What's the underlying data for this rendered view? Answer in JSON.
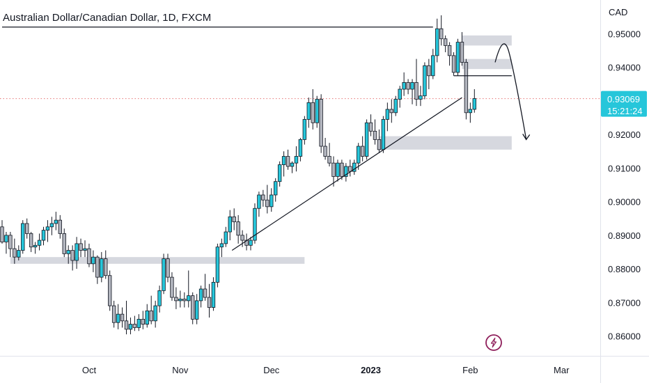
{
  "chart_title": "Australian Dollar/Canadian Dollar, 1D, FXCM",
  "currency": "CAD",
  "price_badge": {
    "price": "0.93069",
    "countdown": "15:21:24"
  },
  "colors": {
    "up": "#26c6da",
    "down": "#b2b5be",
    "zone": "#d1d4dc",
    "badge": "#26c6da",
    "price_line": "#e57373"
  },
  "icon": {
    "name": "lightning-icon",
    "color": "#8e1e5a"
  },
  "chart_data": {
    "type": "candlestick",
    "title": "Australian Dollar/Canadian Dollar, 1D, FXCM",
    "y_axis_label": "CAD",
    "ylim": [
      0.855,
      0.9565
    ],
    "y_ticks": [
      {
        "value": 0.95,
        "label": "0.95000"
      },
      {
        "value": 0.94,
        "label": "0.94000"
      },
      {
        "value": 0.92,
        "label": "0.92000"
      },
      {
        "value": 0.91,
        "label": "0.91000"
      },
      {
        "value": 0.9,
        "label": "0.90000"
      },
      {
        "value": 0.89,
        "label": "0.89000"
      },
      {
        "value": 0.88,
        "label": "0.88000"
      },
      {
        "value": 0.87,
        "label": "0.87000"
      },
      {
        "value": 0.86,
        "label": "0.86000"
      }
    ],
    "x_ticks": [
      {
        "label": "Oct",
        "bar": 21,
        "bold": false
      },
      {
        "label": "Nov",
        "bar": 43,
        "bold": false
      },
      {
        "label": "Dec",
        "bar": 65,
        "bold": false
      },
      {
        "label": "2023",
        "bar": 89,
        "bold": true
      },
      {
        "label": "Feb",
        "bar": 113,
        "bold": false
      },
      {
        "label": "Mar",
        "bar": 135,
        "bold": false
      }
    ],
    "last_price": 0.93069,
    "candles": [
      [
        0.8925,
        0.8945,
        0.8875,
        0.888
      ],
      [
        0.888,
        0.891,
        0.8845,
        0.89
      ],
      [
        0.89,
        0.891,
        0.8835,
        0.886
      ],
      [
        0.886,
        0.889,
        0.8815,
        0.8835
      ],
      [
        0.8835,
        0.887,
        0.8825,
        0.8855
      ],
      [
        0.8855,
        0.8945,
        0.8845,
        0.8935
      ],
      [
        0.8935,
        0.895,
        0.889,
        0.8905
      ],
      [
        0.8905,
        0.891,
        0.885,
        0.8865
      ],
      [
        0.8865,
        0.888,
        0.8845,
        0.887
      ],
      [
        0.887,
        0.8905,
        0.8855,
        0.8885
      ],
      [
        0.8885,
        0.8925,
        0.887,
        0.8915
      ],
      [
        0.8915,
        0.8945,
        0.888,
        0.8925
      ],
      [
        0.8925,
        0.8955,
        0.89,
        0.8935
      ],
      [
        0.8935,
        0.897,
        0.8915,
        0.8945
      ],
      [
        0.8945,
        0.896,
        0.889,
        0.8905
      ],
      [
        0.8905,
        0.892,
        0.8835,
        0.8845
      ],
      [
        0.8845,
        0.887,
        0.8815,
        0.8855
      ],
      [
        0.8855,
        0.887,
        0.8795,
        0.8825
      ],
      [
        0.8825,
        0.8895,
        0.88,
        0.8875
      ],
      [
        0.8875,
        0.889,
        0.8835,
        0.8855
      ],
      [
        0.8855,
        0.8885,
        0.8835,
        0.886
      ],
      [
        0.886,
        0.8875,
        0.8805,
        0.8815
      ],
      [
        0.8815,
        0.8855,
        0.879,
        0.8835
      ],
      [
        0.8835,
        0.884,
        0.8755,
        0.8775
      ],
      [
        0.8775,
        0.885,
        0.876,
        0.883
      ],
      [
        0.883,
        0.8855,
        0.877,
        0.878
      ],
      [
        0.878,
        0.8795,
        0.8675,
        0.869
      ],
      [
        0.869,
        0.8705,
        0.8625,
        0.864
      ],
      [
        0.864,
        0.8695,
        0.862,
        0.8665
      ],
      [
        0.8665,
        0.8685,
        0.8625,
        0.8645
      ],
      [
        0.8645,
        0.8705,
        0.8605,
        0.862
      ],
      [
        0.862,
        0.8655,
        0.8605,
        0.8635
      ],
      [
        0.8635,
        0.866,
        0.8615,
        0.8625
      ],
      [
        0.8625,
        0.8665,
        0.8615,
        0.865
      ],
      [
        0.865,
        0.8675,
        0.862,
        0.8635
      ],
      [
        0.8635,
        0.8695,
        0.8625,
        0.8675
      ],
      [
        0.8675,
        0.872,
        0.8635,
        0.8645
      ],
      [
        0.8645,
        0.8705,
        0.8625,
        0.869
      ],
      [
        0.869,
        0.875,
        0.867,
        0.8735
      ],
      [
        0.8735,
        0.8845,
        0.8725,
        0.883
      ],
      [
        0.883,
        0.8845,
        0.876,
        0.8775
      ],
      [
        0.8775,
        0.879,
        0.8705,
        0.8715
      ],
      [
        0.8715,
        0.8745,
        0.868,
        0.8705
      ],
      [
        0.8705,
        0.8735,
        0.8685,
        0.871
      ],
      [
        0.871,
        0.873,
        0.8685,
        0.8705
      ],
      [
        0.8705,
        0.8795,
        0.8685,
        0.872
      ],
      [
        0.872,
        0.873,
        0.8635,
        0.865
      ],
      [
        0.865,
        0.8725,
        0.8635,
        0.8705
      ],
      [
        0.8705,
        0.875,
        0.8685,
        0.874
      ],
      [
        0.874,
        0.8785,
        0.8705,
        0.8715
      ],
      [
        0.8715,
        0.8755,
        0.8655,
        0.8685
      ],
      [
        0.8685,
        0.8775,
        0.8675,
        0.876
      ],
      [
        0.876,
        0.8875,
        0.8745,
        0.8865
      ],
      [
        0.8865,
        0.889,
        0.8835,
        0.8875
      ],
      [
        0.8875,
        0.8925,
        0.8865,
        0.891
      ],
      [
        0.891,
        0.8975,
        0.8885,
        0.8955
      ],
      [
        0.8955,
        0.898,
        0.8915,
        0.894
      ],
      [
        0.894,
        0.896,
        0.8875,
        0.89
      ],
      [
        0.89,
        0.8915,
        0.8865,
        0.8885
      ],
      [
        0.8885,
        0.8905,
        0.8855,
        0.887
      ],
      [
        0.887,
        0.8895,
        0.8855,
        0.8885
      ],
      [
        0.8885,
        0.8995,
        0.8875,
        0.898
      ],
      [
        0.898,
        0.903,
        0.8955,
        0.902
      ],
      [
        0.902,
        0.9035,
        0.8985,
        0.9005
      ],
      [
        0.9005,
        0.905,
        0.8965,
        0.8985
      ],
      [
        0.8985,
        0.904,
        0.897,
        0.902
      ],
      [
        0.902,
        0.907,
        0.9,
        0.906
      ],
      [
        0.906,
        0.912,
        0.9045,
        0.911
      ],
      [
        0.911,
        0.915,
        0.9075,
        0.9135
      ],
      [
        0.9135,
        0.9155,
        0.9095,
        0.9105
      ],
      [
        0.9105,
        0.912,
        0.9085,
        0.9115
      ],
      [
        0.9115,
        0.9165,
        0.909,
        0.9135
      ],
      [
        0.9135,
        0.919,
        0.912,
        0.9185
      ],
      [
        0.9185,
        0.9255,
        0.917,
        0.9245
      ],
      [
        0.9245,
        0.931,
        0.922,
        0.9295
      ],
      [
        0.9295,
        0.9335,
        0.9215,
        0.9235
      ],
      [
        0.9235,
        0.9315,
        0.922,
        0.9305
      ],
      [
        0.9305,
        0.932,
        0.9145,
        0.9165
      ],
      [
        0.9165,
        0.919,
        0.9125,
        0.9135
      ],
      [
        0.9135,
        0.9175,
        0.9105,
        0.9115
      ],
      [
        0.9115,
        0.9135,
        0.9045,
        0.9075
      ],
      [
        0.9075,
        0.9125,
        0.906,
        0.9115
      ],
      [
        0.9115,
        0.9125,
        0.9065,
        0.9075
      ],
      [
        0.9075,
        0.9115,
        0.906,
        0.9105
      ],
      [
        0.9105,
        0.9125,
        0.9075,
        0.909
      ],
      [
        0.909,
        0.9125,
        0.908,
        0.9115
      ],
      [
        0.9115,
        0.9175,
        0.9095,
        0.9165
      ],
      [
        0.9165,
        0.9195,
        0.912,
        0.9135
      ],
      [
        0.9135,
        0.9245,
        0.9125,
        0.9235
      ],
      [
        0.9235,
        0.926,
        0.9195,
        0.921
      ],
      [
        0.921,
        0.9245,
        0.917,
        0.9185
      ],
      [
        0.9185,
        0.9215,
        0.9145,
        0.9155
      ],
      [
        0.9155,
        0.9255,
        0.9145,
        0.9245
      ],
      [
        0.9245,
        0.9295,
        0.921,
        0.9275
      ],
      [
        0.9275,
        0.9305,
        0.9235,
        0.9265
      ],
      [
        0.9265,
        0.9315,
        0.9255,
        0.9305
      ],
      [
        0.9305,
        0.9345,
        0.928,
        0.9335
      ],
      [
        0.9335,
        0.9385,
        0.9315,
        0.9355
      ],
      [
        0.9355,
        0.9365,
        0.932,
        0.9335
      ],
      [
        0.9335,
        0.9365,
        0.929,
        0.9355
      ],
      [
        0.9355,
        0.9425,
        0.9285,
        0.9305
      ],
      [
        0.9305,
        0.9345,
        0.9285,
        0.9315
      ],
      [
        0.9315,
        0.9415,
        0.9305,
        0.9405
      ],
      [
        0.9405,
        0.9425,
        0.9335,
        0.9375
      ],
      [
        0.9375,
        0.9455,
        0.9365,
        0.9435
      ],
      [
        0.9435,
        0.9545,
        0.9415,
        0.9515
      ],
      [
        0.9515,
        0.9555,
        0.9465,
        0.9485
      ],
      [
        0.9485,
        0.9495,
        0.9445,
        0.9465
      ],
      [
        0.9465,
        0.9475,
        0.9405,
        0.9435
      ],
      [
        0.9435,
        0.9445,
        0.9375,
        0.9385
      ],
      [
        0.9385,
        0.9485,
        0.9375,
        0.9475
      ],
      [
        0.9475,
        0.9505,
        0.9405,
        0.9415
      ],
      [
        0.9415,
        0.9425,
        0.9245,
        0.9265
      ],
      [
        0.9265,
        0.9295,
        0.9235,
        0.9275
      ],
      [
        0.9275,
        0.9335,
        0.9265,
        0.9307
      ]
    ],
    "zones": [
      {
        "from_bar": 2,
        "to_bar": 73,
        "y_low": 0.8815,
        "y_high": 0.8835
      },
      {
        "from_bar": 91,
        "to_bar": 123,
        "y_low": 0.9155,
        "y_high": 0.9195
      },
      {
        "from_bar": 111,
        "to_bar": 123,
        "y_low": 0.9465,
        "y_high": 0.9495
      },
      {
        "from_bar": 111,
        "to_bar": 123,
        "y_low": 0.9395,
        "y_high": 0.9425
      }
    ],
    "lines": [
      {
        "name": "resistance-line",
        "from": {
          "bar": 0,
          "y": 0.952
        },
        "to": {
          "bar": 104,
          "y": 0.952
        }
      },
      {
        "name": "trendline",
        "from": {
          "bar": 55.5,
          "y": 0.8855
        },
        "to": {
          "bar": 111,
          "y": 0.931
        }
      },
      {
        "name": "breakdown-line",
        "from": {
          "bar": 109,
          "y": 0.9375
        },
        "to": {
          "bar": 123,
          "y": 0.9375
        }
      }
    ],
    "projection_arrow": {
      "start": {
        "bar": 119,
        "y": 0.9415
      },
      "peak": {
        "bar": 121,
        "y": 0.9445
      },
      "end": {
        "bar": 126.5,
        "y": 0.9185
      }
    }
  }
}
